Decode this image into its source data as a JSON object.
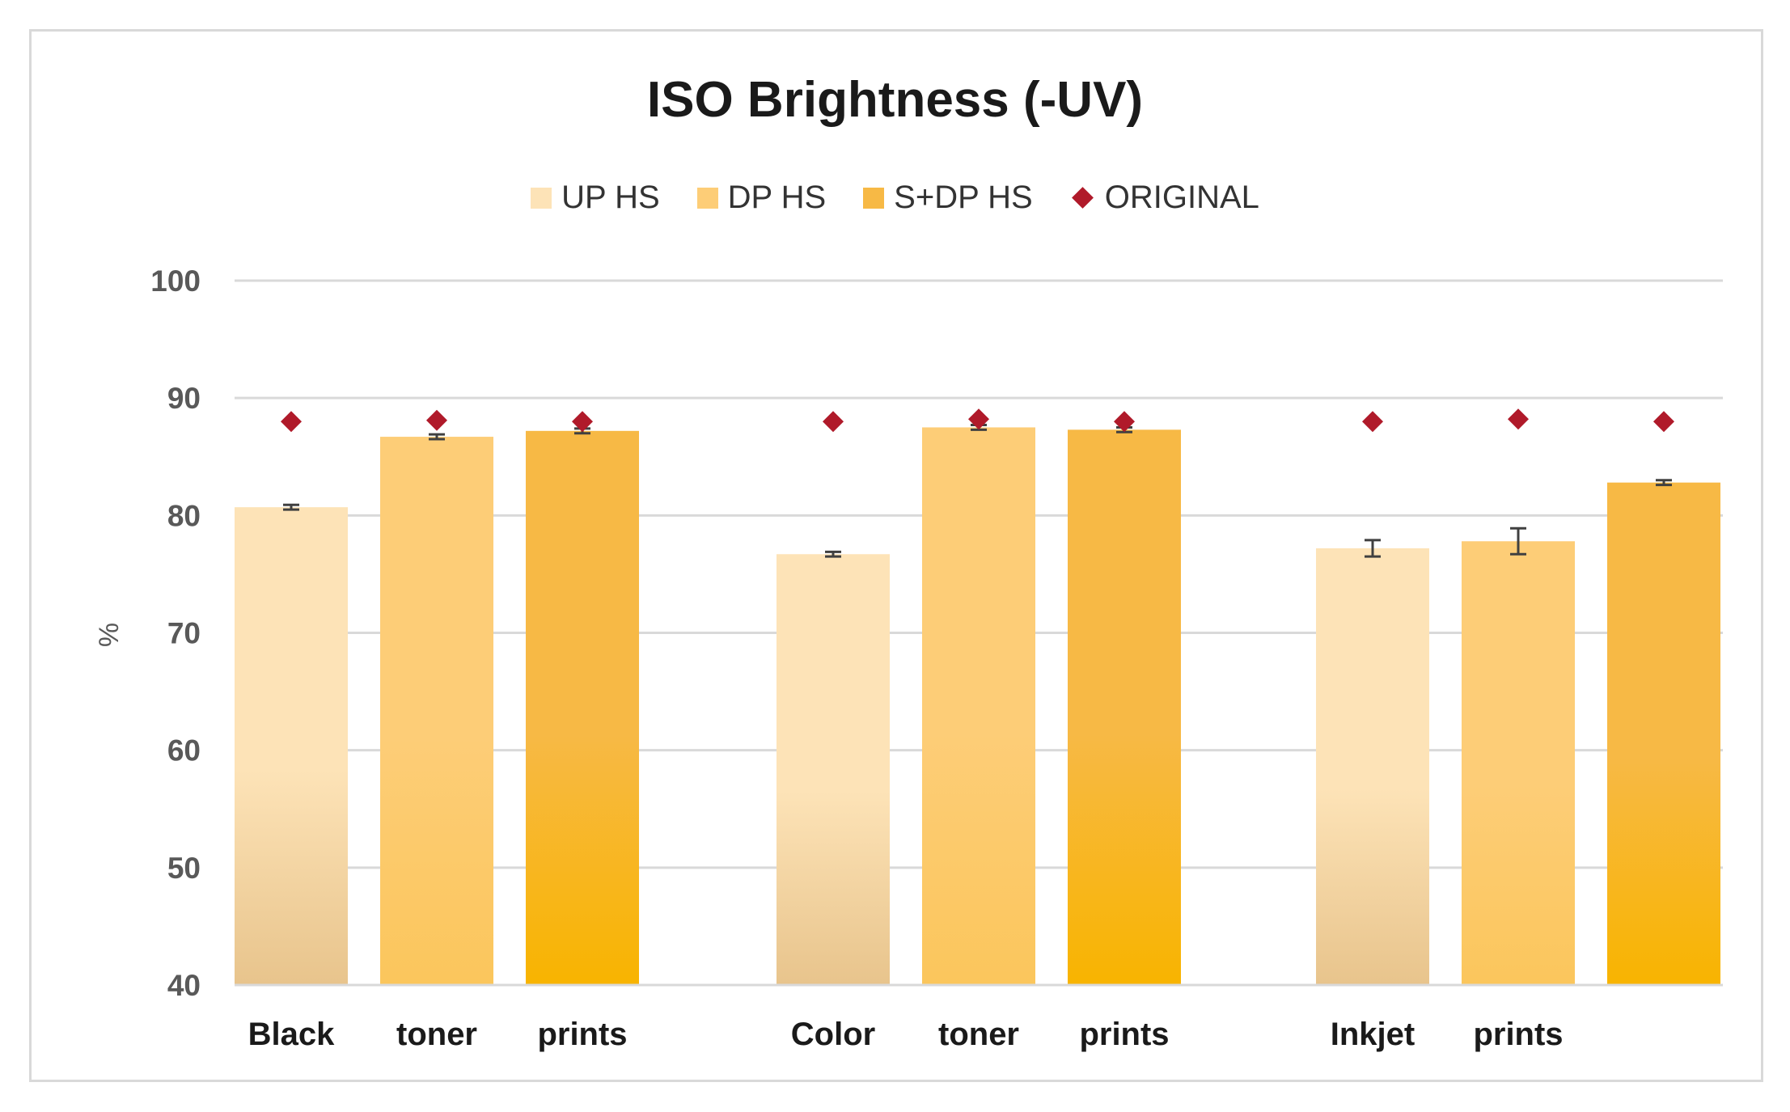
{
  "chart_data": {
    "type": "bar",
    "title": "ISO Brightness (-UV)",
    "ylabel": "%",
    "ylim": [
      40,
      100
    ],
    "yticks": [
      40,
      50,
      60,
      70,
      80,
      90,
      100
    ],
    "grid": true,
    "legend_position": "top",
    "x_labels": [
      "Black",
      "toner",
      "prints",
      "Color",
      "toner",
      "prints",
      "Inkjet",
      "prints"
    ],
    "groups": [
      {
        "bars": [
          {
            "series": "UP HS",
            "value": 80.7,
            "error": 0.2,
            "original": 88.0
          },
          {
            "series": "DP HS",
            "value": 86.7,
            "error": 0.2,
            "original": 88.1
          },
          {
            "series": "S+DP HS",
            "value": 87.2,
            "error": 0.2,
            "original": 88.0
          }
        ]
      },
      {
        "bars": [
          {
            "series": "UP HS",
            "value": 76.7,
            "error": 0.2,
            "original": 88.0
          },
          {
            "series": "DP HS",
            "value": 87.5,
            "error": 0.2,
            "original": 88.2
          },
          {
            "series": "S+DP HS",
            "value": 87.3,
            "error": 0.2,
            "original": 88.0
          }
        ]
      },
      {
        "bars": [
          {
            "series": "UP HS",
            "value": 77.2,
            "error": 0.7,
            "original": 88.0
          },
          {
            "series": "DP HS",
            "value": 77.8,
            "error": 1.1,
            "original": 88.2
          },
          {
            "series": "S+DP HS",
            "value": 82.8,
            "error": 0.2,
            "original": 88.0
          }
        ]
      }
    ],
    "series": [
      {
        "name": "UP HS",
        "kind": "bar",
        "color_top": "#fde3b7",
        "color_bottom": "#e8c48c"
      },
      {
        "name": "DP HS",
        "kind": "bar",
        "color_top": "#fdcd77",
        "color_bottom": "#fbc65c"
      },
      {
        "name": "S+DP HS",
        "kind": "bar",
        "color_top": "#f7b945",
        "color_bottom": "#f8b400"
      },
      {
        "name": "ORIGINAL",
        "kind": "marker",
        "marker": "diamond",
        "color": "#b01a2a"
      }
    ]
  },
  "colors": {
    "gridline": "#d9d9d9",
    "errorbar": "#404040",
    "frame_border": "#d9d9d9"
  }
}
